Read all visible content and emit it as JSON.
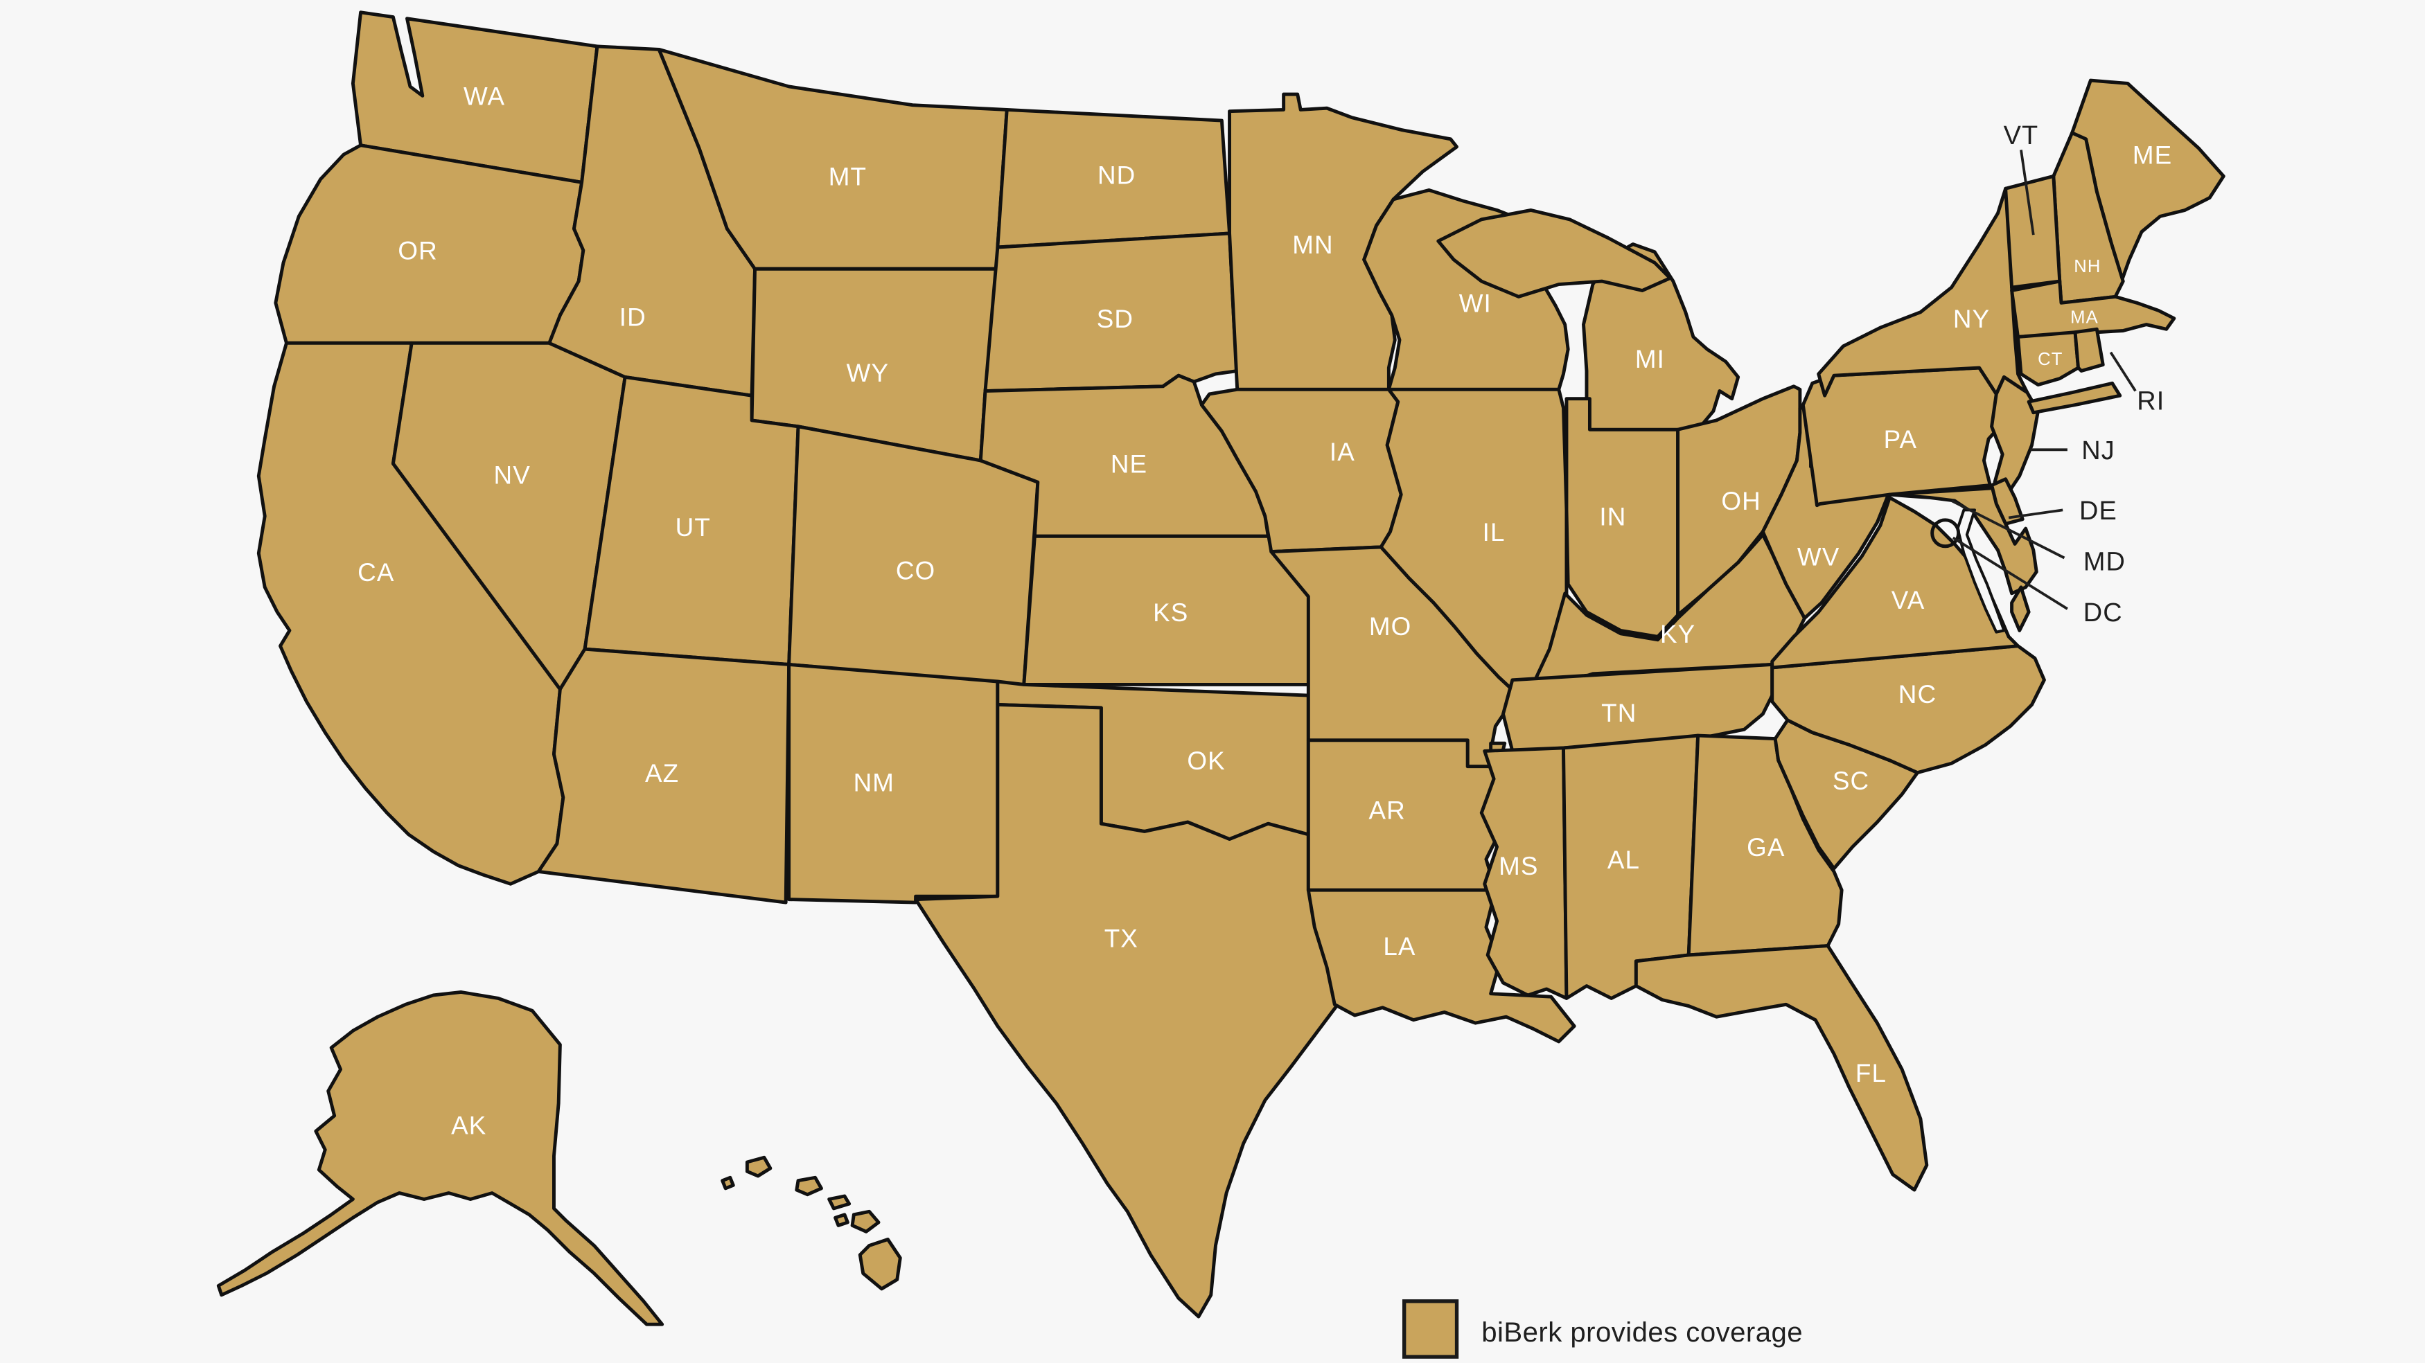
{
  "map": {
    "background_color": "#f7f7f7",
    "state_fill_color": "#c9a45c",
    "border_color": "#111111",
    "inside_label_color": "#ffffff",
    "external_label_color": "#1f1f1f",
    "states": [
      {
        "code": "WA",
        "label": "WA",
        "placement": "inside"
      },
      {
        "code": "OR",
        "label": "OR",
        "placement": "inside"
      },
      {
        "code": "CA",
        "label": "CA",
        "placement": "inside"
      },
      {
        "code": "NV",
        "label": "NV",
        "placement": "inside"
      },
      {
        "code": "ID",
        "label": "ID",
        "placement": "inside"
      },
      {
        "code": "MT",
        "label": "MT",
        "placement": "inside"
      },
      {
        "code": "WY",
        "label": "WY",
        "placement": "inside"
      },
      {
        "code": "UT",
        "label": "UT",
        "placement": "inside"
      },
      {
        "code": "CO",
        "label": "CO",
        "placement": "inside"
      },
      {
        "code": "AZ",
        "label": "AZ",
        "placement": "inside"
      },
      {
        "code": "NM",
        "label": "NM",
        "placement": "inside"
      },
      {
        "code": "ND",
        "label": "ND",
        "placement": "inside"
      },
      {
        "code": "SD",
        "label": "SD",
        "placement": "inside"
      },
      {
        "code": "NE",
        "label": "NE",
        "placement": "inside"
      },
      {
        "code": "KS",
        "label": "KS",
        "placement": "inside"
      },
      {
        "code": "OK",
        "label": "OK",
        "placement": "inside"
      },
      {
        "code": "TX",
        "label": "TX",
        "placement": "inside"
      },
      {
        "code": "MN",
        "label": "MN",
        "placement": "inside"
      },
      {
        "code": "IA",
        "label": "IA",
        "placement": "inside"
      },
      {
        "code": "MO",
        "label": "MO",
        "placement": "inside"
      },
      {
        "code": "AR",
        "label": "AR",
        "placement": "inside"
      },
      {
        "code": "LA",
        "label": "LA",
        "placement": "inside"
      },
      {
        "code": "WI",
        "label": "WI",
        "placement": "inside"
      },
      {
        "code": "IL",
        "label": "IL",
        "placement": "inside"
      },
      {
        "code": "MI",
        "label": "MI",
        "placement": "inside"
      },
      {
        "code": "IN",
        "label": "IN",
        "placement": "inside"
      },
      {
        "code": "OH",
        "label": "OH",
        "placement": "inside"
      },
      {
        "code": "KY",
        "label": "KY",
        "placement": "inside"
      },
      {
        "code": "TN",
        "label": "TN",
        "placement": "inside"
      },
      {
        "code": "MS",
        "label": "MS",
        "placement": "inside"
      },
      {
        "code": "AL",
        "label": "AL",
        "placement": "inside"
      },
      {
        "code": "GA",
        "label": "GA",
        "placement": "inside"
      },
      {
        "code": "FL",
        "label": "FL",
        "placement": "inside"
      },
      {
        "code": "SC",
        "label": "SC",
        "placement": "inside"
      },
      {
        "code": "NC",
        "label": "NC",
        "placement": "inside"
      },
      {
        "code": "VA",
        "label": "VA",
        "placement": "inside"
      },
      {
        "code": "WV",
        "label": "WV",
        "placement": "inside"
      },
      {
        "code": "PA",
        "label": "PA",
        "placement": "inside"
      },
      {
        "code": "NY",
        "label": "NY",
        "placement": "inside"
      },
      {
        "code": "ME",
        "label": "ME",
        "placement": "inside"
      },
      {
        "code": "NH",
        "label": "NH",
        "placement": "inside",
        "small": true
      },
      {
        "code": "MA",
        "label": "MA",
        "placement": "inside",
        "small": true
      },
      {
        "code": "CT",
        "label": "CT",
        "placement": "inside",
        "small": true
      },
      {
        "code": "AK",
        "label": "AK",
        "placement": "inside"
      },
      {
        "code": "VT",
        "label": "VT",
        "placement": "external"
      },
      {
        "code": "RI",
        "label": "RI",
        "placement": "external"
      },
      {
        "code": "NJ",
        "label": "NJ",
        "placement": "external"
      },
      {
        "code": "DE",
        "label": "DE",
        "placement": "external"
      },
      {
        "code": "MD",
        "label": "MD",
        "placement": "external"
      },
      {
        "code": "DC",
        "label": "DC",
        "placement": "external"
      }
    ]
  },
  "legend": {
    "label": "biBerk provides coverage",
    "swatch_color": "#c9a45c"
  }
}
